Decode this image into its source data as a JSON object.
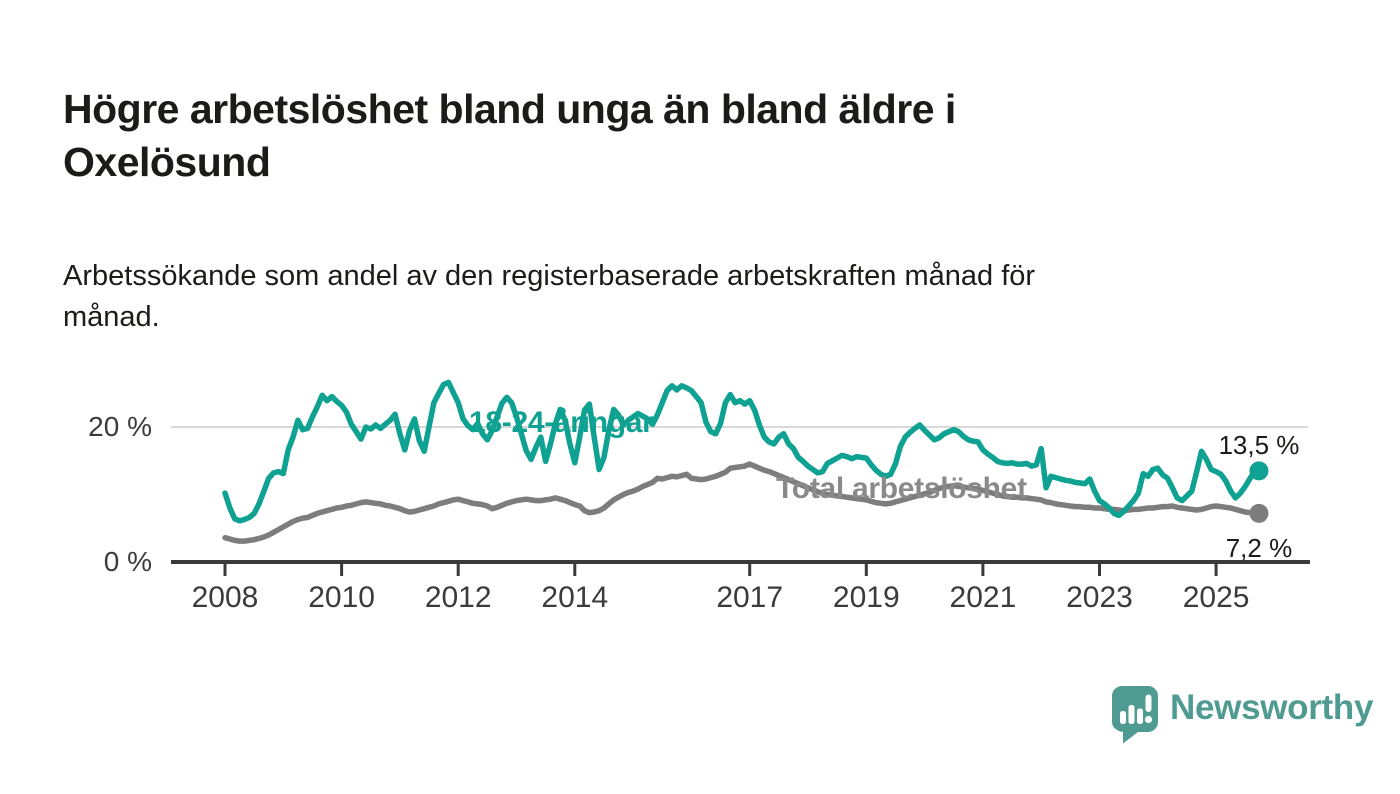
{
  "header": {
    "title": "Högre arbetslöshet bland unga än bland äldre i Oxelösund",
    "title_lines": [
      "Högre arbetslöshet bland unga än bland äldre i",
      "Oxelösund"
    ],
    "subtitle": "Arbetssökande som andel av den registerbaserade arbetskraften månad för månad.",
    "subtitle_lines": [
      "Arbetssökande som andel av den registerbaserade arbetskraften månad för",
      "månad."
    ]
  },
  "chart_data": {
    "type": "line",
    "unit": "percent",
    "grid": "horizontal-only",
    "legend_position": "inline-labels",
    "x_axis": {
      "start_year": 2008,
      "start_month": 1,
      "frequency": "monthly",
      "ticks": [
        2008,
        2010,
        2012,
        2014,
        2017,
        2019,
        2021,
        2023,
        2025
      ]
    },
    "y_axis": {
      "range": [
        0,
        28.5
      ],
      "ticks": [
        {
          "value": 0,
          "label": "0 %"
        },
        {
          "value": 20,
          "label": "20 %"
        }
      ]
    },
    "series": [
      {
        "name": "18-24-åringar",
        "color": "#0fa191",
        "label_color": "#0fa191",
        "end_label": "13,5 %",
        "end_label_position": "above",
        "last_value": 13.5,
        "values": [
          10.2,
          8.0,
          6.4,
          6.1,
          6.3,
          6.6,
          7.2,
          8.6,
          10.5,
          12.4,
          13.2,
          13.4,
          13.1,
          16.6,
          18.5,
          21.0,
          19.6,
          19.8,
          21.5,
          23.0,
          24.7,
          23.9,
          24.5,
          23.8,
          23.2,
          22.2,
          20.4,
          19.3,
          18.2,
          20.0,
          19.7,
          20.3,
          19.8,
          20.4,
          21.0,
          21.9,
          19.0,
          16.6,
          19.5,
          21.2,
          18.0,
          16.4,
          20.0,
          23.6,
          25.0,
          26.3,
          26.6,
          25.1,
          23.6,
          21.2,
          20.2,
          19.6,
          20.5,
          19.0,
          18.1,
          19.5,
          21.5,
          23.5,
          24.4,
          23.6,
          21.5,
          19.0,
          16.5,
          15.2,
          17.0,
          18.5,
          14.9,
          17.5,
          20.5,
          22.6,
          21.0,
          17.5,
          14.7,
          18.5,
          22.5,
          23.4,
          18.5,
          13.7,
          15.5,
          19.5,
          22.6,
          21.8,
          20.3,
          21.0,
          21.5,
          22.0,
          21.6,
          21.2,
          20.4,
          21.8,
          23.6,
          25.4,
          26.1,
          25.5,
          26.1,
          25.8,
          25.4,
          24.5,
          23.6,
          20.7,
          19.3,
          19.0,
          20.5,
          23.6,
          24.8,
          23.6,
          23.9,
          23.4,
          23.9,
          22.5,
          20.3,
          18.5,
          17.8,
          17.5,
          18.5,
          19.0,
          17.5,
          16.8,
          15.5,
          14.9,
          14.2,
          13.7,
          13.2,
          13.4,
          14.6,
          15.0,
          15.4,
          15.8,
          15.6,
          15.3,
          15.6,
          15.5,
          15.4,
          14.4,
          13.6,
          13.0,
          12.7,
          13.0,
          14.5,
          17.1,
          18.5,
          19.2,
          19.8,
          20.3,
          19.5,
          18.8,
          18.1,
          18.4,
          19.0,
          19.3,
          19.6,
          19.3,
          18.6,
          18.1,
          17.9,
          17.8,
          16.6,
          16.0,
          15.5,
          14.9,
          14.7,
          14.6,
          14.7,
          14.5,
          14.5,
          14.6,
          14.2,
          14.4,
          16.8,
          11.0,
          12.7,
          12.5,
          12.3,
          12.1,
          12.0,
          11.8,
          11.7,
          11.6,
          12.3,
          10.5,
          9.1,
          8.6,
          8.0,
          7.2,
          6.9,
          7.5,
          8.3,
          9.1,
          10.2,
          13.1,
          12.7,
          13.7,
          13.9,
          12.9,
          12.4,
          11.0,
          9.5,
          9.1,
          9.8,
          10.5,
          13.4,
          16.4,
          15.2,
          13.7,
          13.4,
          13.0,
          12.0,
          10.5,
          9.5,
          10.2,
          11.2,
          12.4,
          13.5
        ]
      },
      {
        "name": "Total arbetslöshet",
        "color": "#7d7d7d",
        "label_color": "#8a8a8a",
        "end_label": "7,2 %",
        "end_label_position": "below",
        "last_value": 7.2,
        "values": [
          3.6,
          3.4,
          3.2,
          3.1,
          3.1,
          3.2,
          3.3,
          3.5,
          3.7,
          4.0,
          4.4,
          4.8,
          5.2,
          5.6,
          6.0,
          6.3,
          6.5,
          6.6,
          6.9,
          7.2,
          7.4,
          7.6,
          7.8,
          8.0,
          8.1,
          8.3,
          8.4,
          8.6,
          8.8,
          8.9,
          8.8,
          8.7,
          8.6,
          8.4,
          8.3,
          8.1,
          7.9,
          7.6,
          7.4,
          7.5,
          7.7,
          7.9,
          8.1,
          8.3,
          8.6,
          8.8,
          9.0,
          9.2,
          9.3,
          9.1,
          8.9,
          8.7,
          8.6,
          8.5,
          8.3,
          7.9,
          8.1,
          8.4,
          8.7,
          8.9,
          9.1,
          9.2,
          9.3,
          9.2,
          9.1,
          9.1,
          9.2,
          9.3,
          9.5,
          9.3,
          9.1,
          8.8,
          8.5,
          8.3,
          7.6,
          7.3,
          7.4,
          7.6,
          8.0,
          8.6,
          9.2,
          9.6,
          10.0,
          10.3,
          10.5,
          10.8,
          11.2,
          11.5,
          11.8,
          12.4,
          12.3,
          12.5,
          12.7,
          12.6,
          12.8,
          13.0,
          12.4,
          12.3,
          12.2,
          12.3,
          12.5,
          12.7,
          13.0,
          13.3,
          13.9,
          14.0,
          14.1,
          14.2,
          14.5,
          14.2,
          13.9,
          13.6,
          13.4,
          13.1,
          12.8,
          12.5,
          12.2,
          11.9,
          11.6,
          11.3,
          11.0,
          10.7,
          10.4,
          10.2,
          10.0,
          9.9,
          9.8,
          9.7,
          9.6,
          9.5,
          9.4,
          9.3,
          9.2,
          9.0,
          8.8,
          8.7,
          8.6,
          8.7,
          8.9,
          9.1,
          9.3,
          9.5,
          9.7,
          9.9,
          10.1,
          10.3,
          10.6,
          10.9,
          11.1,
          11.2,
          11.3,
          11.2,
          11.1,
          11.0,
          10.9,
          10.8,
          10.6,
          10.4,
          10.2,
          10.0,
          9.8,
          9.7,
          9.6,
          9.6,
          9.5,
          9.5,
          9.4,
          9.3,
          9.2,
          8.9,
          8.8,
          8.6,
          8.5,
          8.4,
          8.3,
          8.2,
          8.2,
          8.1,
          8.1,
          8.0,
          8.0,
          7.9,
          7.8,
          7.8,
          7.7,
          7.6,
          7.7,
          7.8,
          7.8,
          7.9,
          8.0,
          8.0,
          8.1,
          8.2,
          8.2,
          8.3,
          8.1,
          8.0,
          7.9,
          7.8,
          7.7,
          7.8,
          8.0,
          8.2,
          8.3,
          8.2,
          8.1,
          8.0,
          7.8,
          7.6,
          7.4,
          7.3,
          7.2
        ]
      }
    ]
  },
  "branding": {
    "name": "Newsworthy",
    "color": "#4f9b92"
  },
  "colors": {
    "axis": "#3a3a3a",
    "gridline": "#d8d8d8",
    "tick_label": "#3b3b3b",
    "text": "#1b1b19",
    "background": "#ffffff"
  }
}
